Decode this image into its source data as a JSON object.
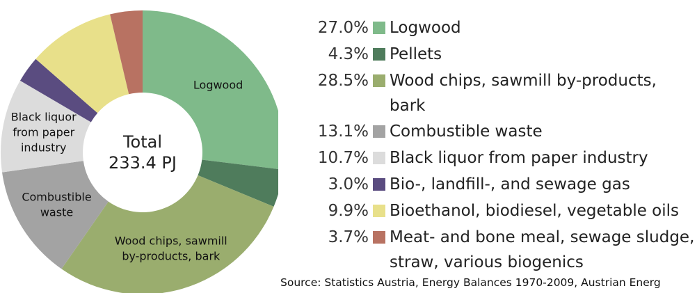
{
  "chart_data": {
    "type": "donut",
    "categories": [
      "Logwood",
      "Pellets",
      "Wood chips, sawmill by-products, bark",
      "Combustible waste",
      "Black liquor from paper industry",
      "Bio-, landfill-, and sewage gas",
      "Bioethanol, biodiesel, vegetable oils",
      "Meat- and bone meal, sewage sludge, straw, various biogenics"
    ],
    "values": [
      27.0,
      4.3,
      28.5,
      13.1,
      10.7,
      3.0,
      9.9,
      3.7
    ],
    "value_labels": [
      "27.0%",
      "4.3%",
      "28.5%",
      "13.1%",
      "10.7%",
      "3.0%",
      "9.9%",
      "3.7%"
    ],
    "colors": [
      "#7fba8a",
      "#4f7c5c",
      "#9aad6e",
      "#a3a3a3",
      "#dcdcdc",
      "#5a4c80",
      "#e8e08a",
      "#b87262"
    ],
    "slice_labels": [
      [
        "Logwood"
      ],
      null,
      [
        "Wood chips, sawmill",
        "by-products, bark"
      ],
      [
        "Combustible",
        "waste"
      ],
      [
        "Black liquor",
        "from paper",
        "industry"
      ],
      null,
      null,
      null
    ],
    "center_label": [
      "Total",
      "233.4 PJ"
    ],
    "source": "Source: Statistics Austria, Energy Balances 1970-2009, Austrian Energ"
  }
}
